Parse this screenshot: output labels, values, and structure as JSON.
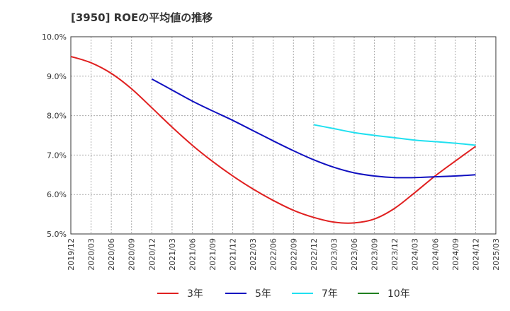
{
  "chart_data": {
    "type": "line",
    "title": "[3950]  ROEの平均値の推移",
    "xlabel": "",
    "ylabel": "",
    "ylim": [
      5.0,
      10.0
    ],
    "y_ticks": [
      "5.0%",
      "6.0%",
      "7.0%",
      "8.0%",
      "9.0%",
      "10.0%"
    ],
    "y_tick_values": [
      5,
      6,
      7,
      8,
      9,
      10
    ],
    "grid": true,
    "legend_position": "bottom",
    "x": [
      "2019/12",
      "2020/03",
      "2020/06",
      "2020/09",
      "2020/12",
      "2021/03",
      "2021/06",
      "2021/09",
      "2021/12",
      "2022/03",
      "2022/06",
      "2022/09",
      "2022/12",
      "2023/03",
      "2023/06",
      "2023/09",
      "2023/12",
      "2024/03",
      "2024/06",
      "2024/09",
      "2024/12",
      "2025/03"
    ],
    "series": [
      {
        "name": "3年",
        "color": "#e02020",
        "values": [
          9.5,
          9.34,
          9.07,
          8.68,
          8.2,
          7.71,
          7.25,
          6.84,
          6.47,
          6.14,
          5.85,
          5.6,
          5.42,
          5.3,
          5.28,
          5.38,
          5.65,
          6.05,
          6.47,
          6.85,
          7.22,
          null
        ]
      },
      {
        "name": "5年",
        "color": "#1010c0",
        "values": [
          null,
          null,
          null,
          null,
          8.93,
          8.65,
          8.37,
          8.12,
          7.88,
          7.62,
          7.36,
          7.11,
          6.88,
          6.69,
          6.55,
          6.47,
          6.43,
          6.43,
          6.45,
          6.47,
          6.5,
          null
        ]
      },
      {
        "name": "7年",
        "color": "#20e0f0",
        "values": [
          null,
          null,
          null,
          null,
          null,
          null,
          null,
          null,
          null,
          null,
          null,
          null,
          7.77,
          7.67,
          7.57,
          7.5,
          7.44,
          7.38,
          7.34,
          7.3,
          7.25,
          null
        ]
      },
      {
        "name": "10年",
        "color": "#208020",
        "values": [
          null,
          null,
          null,
          null,
          null,
          null,
          null,
          null,
          null,
          null,
          null,
          null,
          null,
          null,
          null,
          null,
          null,
          null,
          null,
          null,
          null,
          null
        ]
      }
    ]
  }
}
